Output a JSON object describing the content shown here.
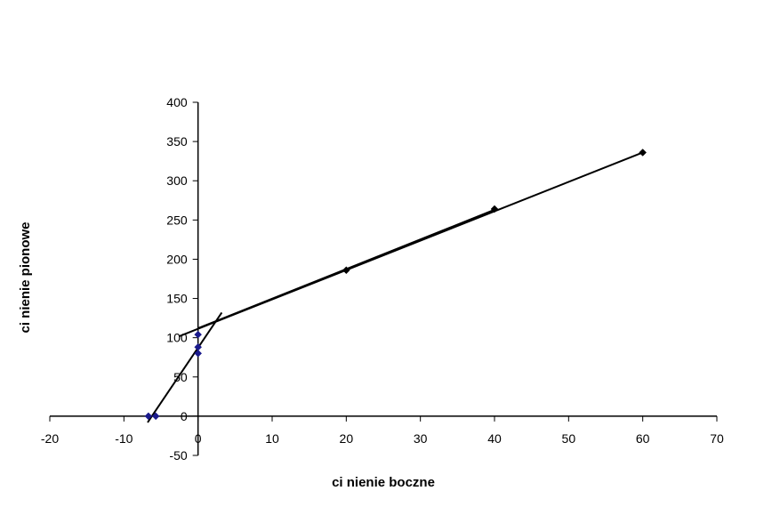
{
  "chart_data": {
    "type": "scatter",
    "title": "",
    "xlabel": "ci  nienie boczne",
    "ylabel": "ci  nienie pionowe",
    "xlim": [
      -20,
      70
    ],
    "ylim": [
      -50,
      400
    ],
    "x_ticks": [
      -20,
      -10,
      0,
      10,
      20,
      30,
      40,
      50,
      60,
      70
    ],
    "y_ticks": [
      -50,
      0,
      50,
      100,
      150,
      200,
      250,
      300,
      350,
      400
    ],
    "grid": false,
    "legend": "none",
    "series": [
      {
        "marker": "diamond",
        "color": "#1a1a8c",
        "points": [
          {
            "x": -6.7,
            "y": 0
          },
          {
            "x": -5.7,
            "y": 0
          },
          {
            "x": 0,
            "y": 80
          },
          {
            "x": 0,
            "y": 88
          },
          {
            "x": 0,
            "y": 104
          }
        ]
      },
      {
        "marker": "diamond",
        "color": "#000000",
        "points": [
          {
            "x": 20,
            "y": 186
          },
          {
            "x": 40,
            "y": 264
          },
          {
            "x": 60,
            "y": 336
          }
        ]
      }
    ],
    "trendlines": [
      {
        "color": "#000000",
        "from": {
          "x": -6.8,
          "y": -8
        },
        "to": {
          "x": 3.2,
          "y": 132
        }
      },
      {
        "color": "#000000",
        "from": {
          "x": -2.5,
          "y": 102
        },
        "to": {
          "x": 60,
          "y": 336
        }
      },
      {
        "color": "#000000",
        "from": {
          "x": 0,
          "y": 112
        },
        "to": {
          "x": 40,
          "y": 263
        }
      }
    ]
  }
}
